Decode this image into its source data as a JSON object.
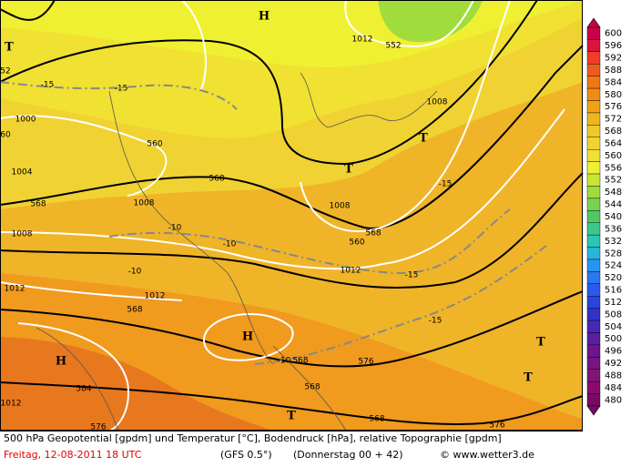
{
  "map_labels": [
    "H",
    "T",
    "T",
    "T",
    "H",
    "H",
    "T",
    "T",
    "T",
    "1012",
    "552",
    "1008",
    "-15",
    "-15",
    "-15",
    "-15",
    "-10",
    "-10",
    "-10",
    "-10",
    "568",
    "568",
    "568",
    "1008",
    "1008",
    "1008",
    "1012",
    "1012",
    "1012",
    "1012",
    "584",
    "576",
    "576",
    "1000",
    "1004",
    "560",
    "560",
    "568",
    "568",
    "568",
    "568",
    "576",
    "52",
    "60",
    "-15"
  ],
  "colorbar": {
    "labels": [
      "600",
      "596",
      "592",
      "588",
      "584",
      "580",
      "576",
      "572",
      "568",
      "564",
      "560",
      "556",
      "552",
      "548",
      "544",
      "540",
      "536",
      "532",
      "528",
      "524",
      "520",
      "516",
      "512",
      "508",
      "504",
      "500",
      "496",
      "492",
      "488",
      "484",
      "480"
    ],
    "colors": [
      "#c8004a",
      "#dc143c",
      "#f03c28",
      "#f05a1e",
      "#f07814",
      "#f08c14",
      "#f0a014",
      "#f0b41e",
      "#f0c828",
      "#f0d232",
      "#f0e132",
      "#f0f032",
      "#c8e632",
      "#a0dc3c",
      "#78d250",
      "#50c864",
      "#3cc88c",
      "#28c8b4",
      "#28b4dc",
      "#2896f0",
      "#2878f0",
      "#285af0",
      "#2846dc",
      "#3232c8",
      "#4628b4",
      "#5a1ea0",
      "#6e148c",
      "#781482",
      "#821478",
      "#8c0a6e",
      "#780a64"
    ]
  },
  "footer": {
    "line1": "500 hPa Geopotential [gpdm] und Temperatur [°C], Bodendruck [hPa], relative Topographie [gpdm]",
    "date": "Freitag, 12-08-2011   18 UTC",
    "model": "(GFS 0.5°)",
    "run": "(Donnerstag 00 + 42)",
    "credit": "© www.wetter3.de"
  }
}
